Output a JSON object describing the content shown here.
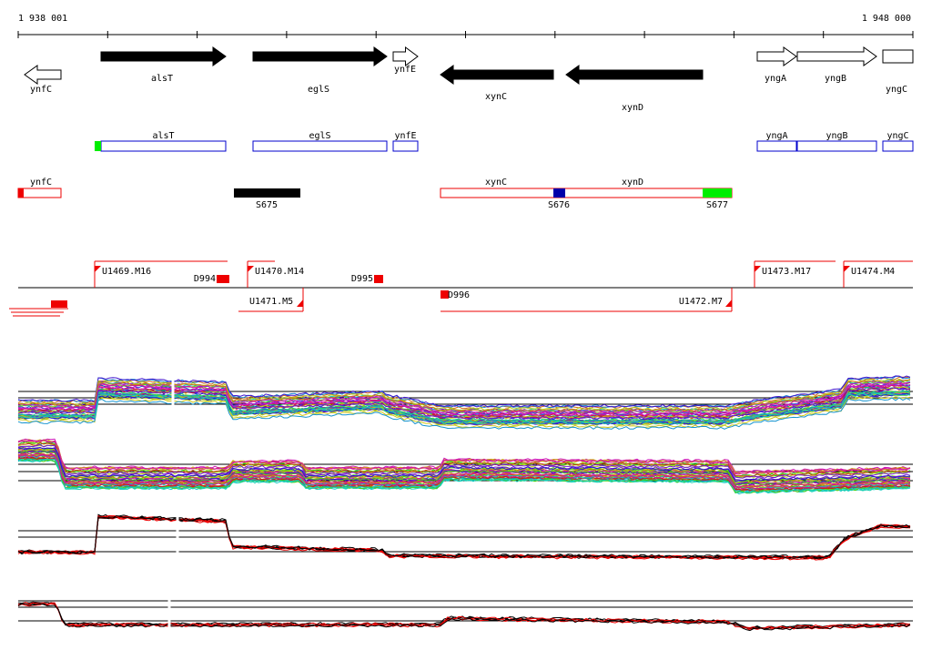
{
  "ruler": {
    "start": "1 938 001",
    "end": "1 948 000"
  },
  "genes": [
    "ynfC",
    "alsT",
    "eglS",
    "ynfE",
    "xynC",
    "xynD",
    "yngA",
    "yngB",
    "yngC"
  ],
  "transcripts": [
    "alsT",
    "eglS",
    "ynfE",
    "yngA",
    "yngB",
    "yngC"
  ],
  "segments": {
    "transcripts": [
      "ynfC",
      "xynC",
      "xynD"
    ],
    "sites": [
      "S675",
      "S676",
      "S677"
    ]
  },
  "features": [
    "U1469.M16",
    "D994",
    "U1470.M14",
    "D995",
    "U1471.M5",
    "D996",
    "U1472.M7",
    "U1473.M17",
    "U1474.M4"
  ]
}
